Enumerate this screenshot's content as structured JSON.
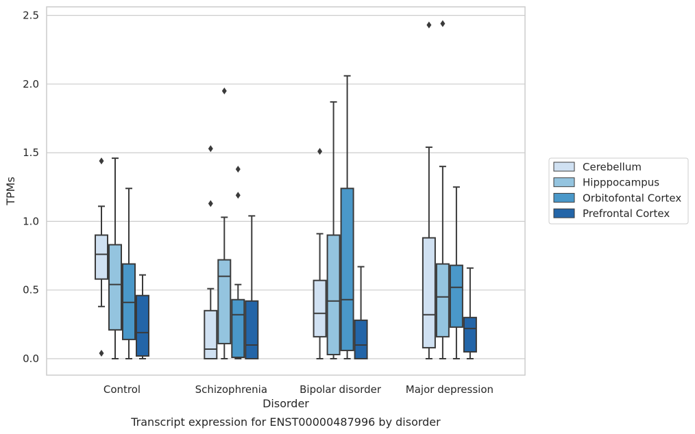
{
  "chart_data": {
    "type": "box",
    "xlabel": "Disorder",
    "ylabel": "TPMs",
    "caption": "Transcript expression for ENST00000487996 by disorder",
    "ylim": [
      -0.12,
      2.56
    ],
    "yticks": [
      "0.0",
      "0.5",
      "1.0",
      "1.5",
      "2.0",
      "2.5"
    ],
    "ytick_values": [
      0.0,
      0.5,
      1.0,
      1.5,
      2.0,
      2.5
    ],
    "grid": true,
    "legend_position": "right",
    "categories": [
      "Control",
      "Schizophrenia",
      "Bipolar disorder",
      "Major depression"
    ],
    "series": [
      {
        "name": "Cerebellum",
        "color": "#d0e1f2",
        "boxes": [
          {
            "whislo": 0.38,
            "q1": 0.58,
            "med": 0.76,
            "q3": 0.9,
            "whishi": 1.11,
            "fliers": [
              1.44,
              0.04
            ]
          },
          {
            "whislo": 0.0,
            "q1": 0.0,
            "med": 0.07,
            "q3": 0.35,
            "whishi": 0.51,
            "fliers": [
              1.53,
              1.13
            ]
          },
          {
            "whislo": 0.0,
            "q1": 0.16,
            "med": 0.33,
            "q3": 0.57,
            "whishi": 0.91,
            "fliers": [
              1.51
            ]
          },
          {
            "whislo": 0.0,
            "q1": 0.08,
            "med": 0.32,
            "q3": 0.88,
            "whishi": 1.54,
            "fliers": [
              2.43
            ]
          }
        ]
      },
      {
        "name": "Hipppocampus",
        "color": "#94c4df",
        "boxes": [
          {
            "whislo": 0.0,
            "q1": 0.21,
            "med": 0.54,
            "q3": 0.83,
            "whishi": 1.46,
            "fliers": []
          },
          {
            "whislo": 0.0,
            "q1": 0.11,
            "med": 0.6,
            "q3": 0.72,
            "whishi": 1.03,
            "fliers": [
              1.95
            ]
          },
          {
            "whislo": 0.0,
            "q1": 0.03,
            "med": 0.42,
            "q3": 0.9,
            "whishi": 1.87,
            "fliers": []
          },
          {
            "whislo": 0.0,
            "q1": 0.16,
            "med": 0.45,
            "q3": 0.69,
            "whishi": 1.4,
            "fliers": [
              2.44
            ]
          }
        ]
      },
      {
        "name": "Orbitofontal Cortex",
        "color": "#4a98c9",
        "boxes": [
          {
            "whislo": 0.0,
            "q1": 0.14,
            "med": 0.41,
            "q3": 0.69,
            "whishi": 1.24,
            "fliers": []
          },
          {
            "whislo": 0.0,
            "q1": 0.01,
            "med": 0.32,
            "q3": 0.43,
            "whishi": 0.54,
            "fliers": [
              1.38,
              1.19
            ]
          },
          {
            "whislo": 0.0,
            "q1": 0.06,
            "med": 0.43,
            "q3": 1.24,
            "whishi": 2.06,
            "fliers": []
          },
          {
            "whislo": 0.0,
            "q1": 0.23,
            "med": 0.52,
            "q3": 0.68,
            "whishi": 1.25,
            "fliers": []
          }
        ]
      },
      {
        "name": "Prefrontal Cortex",
        "color": "#2365a8",
        "boxes": [
          {
            "whislo": 0.0,
            "q1": 0.02,
            "med": 0.19,
            "q3": 0.46,
            "whishi": 0.61,
            "fliers": []
          },
          {
            "whislo": 0.0,
            "q1": 0.0,
            "med": 0.1,
            "q3": 0.42,
            "whishi": 1.04,
            "fliers": []
          },
          {
            "whislo": 0.0,
            "q1": 0.0,
            "med": 0.1,
            "q3": 0.28,
            "whishi": 0.67,
            "fliers": []
          },
          {
            "whislo": 0.0,
            "q1": 0.05,
            "med": 0.22,
            "q3": 0.3,
            "whishi": 0.66,
            "fliers": []
          }
        ]
      }
    ]
  }
}
